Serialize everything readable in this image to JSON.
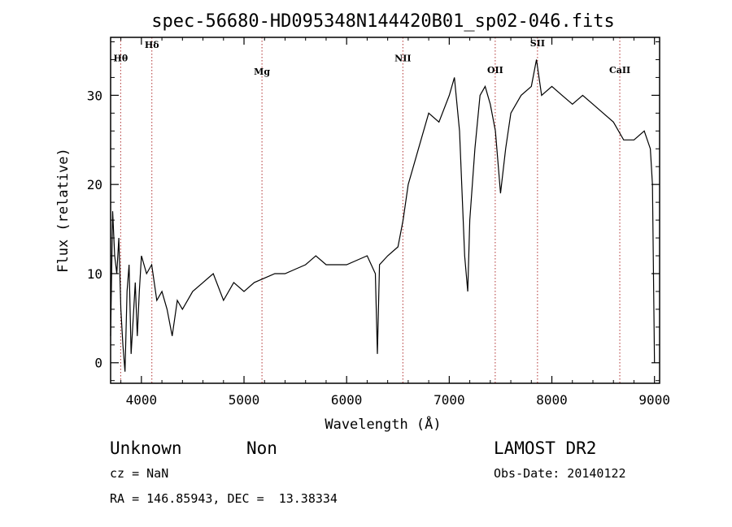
{
  "chart_data": {
    "type": "line",
    "title": "spec-56680-HD095348N144420B01_sp02-046.fits",
    "xlabel": "Wavelength (Å)",
    "ylabel": "Flux (relative)",
    "xlim": [
      3700,
      9050
    ],
    "ylim": [
      -2.3,
      36.5
    ],
    "x_ticks": [
      4000,
      5000,
      6000,
      7000,
      8000,
      9000
    ],
    "y_ticks": [
      0,
      10,
      20,
      30
    ],
    "grid": false,
    "line_color": "#000000",
    "marker_color": "#b03030",
    "spectral_lines": [
      {
        "name": "Hθ",
        "wavelength": 3798,
        "label_y": 33.8
      },
      {
        "name": "Hδ",
        "wavelength": 4102,
        "label_y": 35.3
      },
      {
        "name": "Mg",
        "wavelength": 5175,
        "label_y": 32.3
      },
      {
        "name": "NII",
        "wavelength": 6548,
        "label_y": 33.8
      },
      {
        "name": "OII",
        "wavelength": 7448,
        "label_y": 32.5
      },
      {
        "name": "SII",
        "wavelength": 7860,
        "label_y": 35.5
      },
      {
        "name": "CaII",
        "wavelength": 8662,
        "label_y": 32.5
      }
    ],
    "spectrum": {
      "x": [
        3700,
        3720,
        3740,
        3760,
        3780,
        3800,
        3820,
        3840,
        3860,
        3880,
        3900,
        3920,
        3940,
        3960,
        3980,
        4000,
        4050,
        4100,
        4150,
        4200,
        4250,
        4300,
        4350,
        4400,
        4500,
        4600,
        4700,
        4800,
        4900,
        5000,
        5100,
        5200,
        5300,
        5400,
        5500,
        5600,
        5700,
        5800,
        5900,
        6000,
        6100,
        6200,
        6280,
        6300,
        6320,
        6400,
        6500,
        6550,
        6600,
        6700,
        6800,
        6900,
        7000,
        7050,
        7100,
        7150,
        7180,
        7200,
        7250,
        7300,
        7350,
        7400,
        7450,
        7500,
        7550,
        7600,
        7700,
        7800,
        7850,
        7900,
        8000,
        8100,
        8200,
        8300,
        8400,
        8500,
        8600,
        8700,
        8800,
        8900,
        8960,
        8980,
        9000
      ],
      "y": [
        3,
        17,
        12,
        10,
        14,
        6,
        2,
        -1,
        8,
        11,
        1,
        5,
        9,
        3,
        8,
        12,
        10,
        11,
        7,
        8,
        6,
        3,
        7,
        6,
        8,
        9,
        10,
        7,
        9,
        8,
        9,
        9.5,
        10,
        10,
        10.5,
        11,
        12,
        11,
        11,
        11,
        11.5,
        12,
        10,
        1,
        11,
        12,
        13,
        16,
        20,
        24,
        28,
        27,
        30,
        32,
        26,
        12,
        8,
        16,
        24,
        30,
        31,
        29,
        26,
        19,
        24,
        28,
        30,
        31,
        34,
        30,
        31,
        30,
        29,
        30,
        29,
        28,
        27,
        25,
        25,
        26,
        24,
        20,
        0
      ]
    }
  },
  "info": {
    "object_class": "Unknown",
    "object_subclass": "Non",
    "survey": "LAMOST DR2",
    "redshift_text": "cz = NaN",
    "obs_date_text": "Obs-Date: 20140122",
    "coords_text": "RA = 146.85943, DEC =  13.38334"
  }
}
